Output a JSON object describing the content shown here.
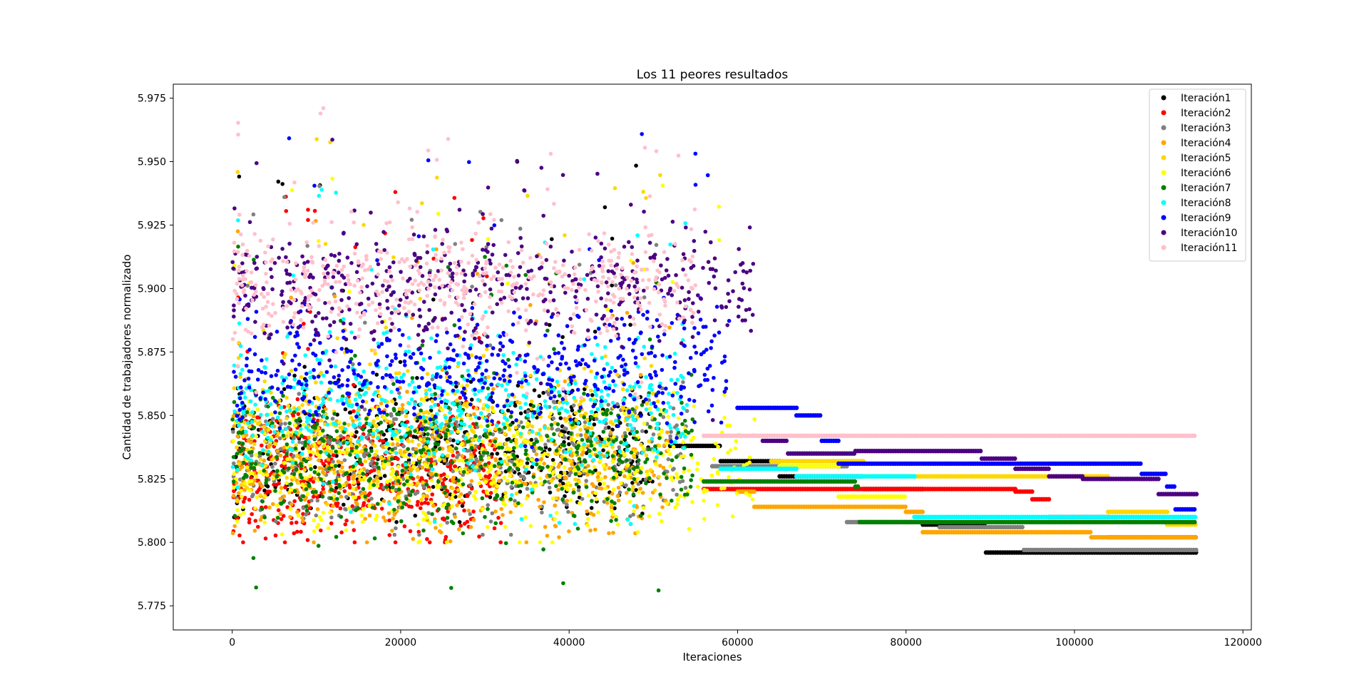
{
  "chart_data": {
    "type": "scatter",
    "title": "Los 11 peores resultados",
    "xlabel": "Iteraciones",
    "ylabel": "Cantidad de trabajadores normalizado",
    "xlim": [
      -7000,
      121000
    ],
    "ylim": [
      5.7655,
      5.9805
    ],
    "xticks": [
      0,
      20000,
      40000,
      60000,
      80000,
      100000,
      120000
    ],
    "yticks": [
      5.775,
      5.8,
      5.825,
      5.85,
      5.875,
      5.9,
      5.925,
      5.95,
      5.975
    ],
    "xtick_labels": [
      "0",
      "20000",
      "40000",
      "60000",
      "80000",
      "100000",
      "120000"
    ],
    "ytick_labels": [
      "5.775",
      "5.800",
      "5.825",
      "5.850",
      "5.875",
      "5.900",
      "5.925",
      "5.950",
      "5.975"
    ],
    "legend_position": "top-right",
    "grid": false,
    "series": [
      {
        "name": "Iteración1",
        "color": "#000000",
        "active_end": 50000,
        "noisy": [
          5.838,
          5.808,
          5.952
        ],
        "steps": [
          [
            52000,
            5.838
          ],
          [
            58000,
            5.832
          ],
          [
            65000,
            5.826
          ],
          [
            75000,
            5.821
          ],
          [
            82000,
            5.807
          ],
          [
            89500,
            5.796
          ],
          [
            114500,
            5.796
          ]
        ]
      },
      {
        "name": "Iteración2",
        "color": "#ff0000",
        "active_end": 32000,
        "noisy": [
          5.828,
          5.8,
          5.94
        ],
        "steps": [
          [
            56000,
            5.821
          ],
          [
            93000,
            5.82
          ],
          [
            95000,
            5.817
          ],
          [
            97000,
            5.81
          ],
          [
            104000,
            5.802
          ],
          [
            114500,
            5.798
          ]
        ]
      },
      {
        "name": "Iteración3",
        "color": "#808080",
        "active_end": 54000,
        "noisy": [
          5.834,
          5.803,
          5.942
        ],
        "steps": [
          [
            57000,
            5.83
          ],
          [
            73000,
            5.808
          ],
          [
            84000,
            5.806
          ],
          [
            94000,
            5.797
          ],
          [
            114500,
            5.797
          ]
        ]
      },
      {
        "name": "Iteración4",
        "color": "#ffa500",
        "active_end": 52000,
        "noisy": [
          5.828,
          5.8,
          5.93
        ],
        "steps": [
          [
            60000,
            5.82
          ],
          [
            62000,
            5.814
          ],
          [
            80000,
            5.812
          ],
          [
            82000,
            5.804
          ],
          [
            102000,
            5.802
          ],
          [
            114500,
            5.801
          ]
        ]
      },
      {
        "name": "Iteración5",
        "color": "#ffd700",
        "active_end": 51000,
        "noisy": [
          5.845,
          5.815,
          5.96
        ],
        "steps": [
          [
            64000,
            5.832
          ],
          [
            75000,
            5.826
          ],
          [
            88000,
            5.826
          ],
          [
            104000,
            5.812
          ],
          [
            111000,
            5.807
          ],
          [
            114500,
            5.806
          ]
        ]
      },
      {
        "name": "Iteración6",
        "color": "#ffff00",
        "active_end": 62000,
        "noisy": [
          5.83,
          5.8,
          5.945
        ],
        "steps": [
          [
            65000,
            5.83
          ],
          [
            72000,
            5.818
          ],
          [
            80000,
            5.818
          ]
        ]
      },
      {
        "name": "Iteración7",
        "color": "#008000",
        "active_end": 55000,
        "noisy": [
          5.835,
          5.777,
          5.925
        ],
        "steps": [
          [
            56000,
            5.824
          ],
          [
            74000,
            5.822
          ],
          [
            74500,
            5.808
          ],
          [
            114500,
            5.808
          ]
        ]
      },
      {
        "name": "Iteración8",
        "color": "#00ffff",
        "active_end": 54000,
        "noisy": [
          5.855,
          5.805,
          5.94
        ],
        "steps": [
          [
            58000,
            5.829
          ],
          [
            67000,
            5.826
          ],
          [
            81000,
            5.81
          ],
          [
            114500,
            5.81
          ]
        ]
      },
      {
        "name": "Iteración9",
        "color": "#0000ff",
        "active_end": 59000,
        "noisy": [
          5.87,
          5.83,
          5.965
        ],
        "steps": [
          [
            60000,
            5.853
          ],
          [
            67000,
            5.85
          ],
          [
            70000,
            5.84
          ],
          [
            72000,
            5.831
          ],
          [
            108000,
            5.827
          ],
          [
            111000,
            5.822
          ],
          [
            112000,
            5.813
          ],
          [
            114500,
            5.813
          ]
        ]
      },
      {
        "name": "Iteración10",
        "color": "#4b0082",
        "active_end": 62000,
        "noisy": [
          5.9,
          5.845,
          5.96
        ],
        "steps": [
          [
            63000,
            5.84
          ],
          [
            66000,
            5.835
          ],
          [
            74000,
            5.836
          ],
          [
            89000,
            5.833
          ],
          [
            93000,
            5.829
          ],
          [
            97000,
            5.826
          ],
          [
            101000,
            5.825
          ],
          [
            110000,
            5.819
          ],
          [
            114500,
            5.819
          ]
        ]
      },
      {
        "name": "Iteración11",
        "color": "#ffc0cb",
        "active_end": 55000,
        "noisy": [
          5.902,
          5.855,
          5.972
        ],
        "steps": [
          [
            56000,
            5.842
          ],
          [
            114500,
            5.842
          ]
        ]
      }
    ]
  }
}
